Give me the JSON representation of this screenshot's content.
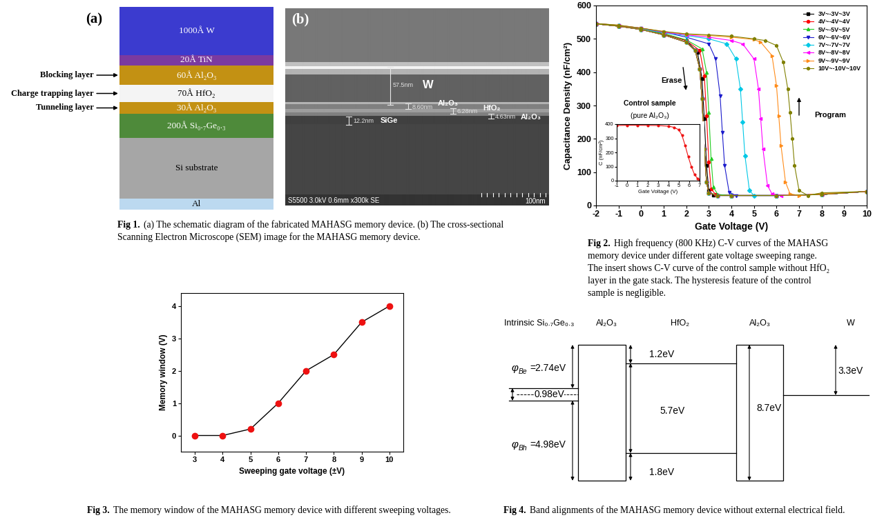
{
  "chart_data": [
    {
      "type": "line",
      "x_label": "Gate Voltage (V)",
      "y_label": "Capacitance Density (nF/cm²)",
      "xlim": [
        -2,
        10
      ],
      "xticks": [
        -2,
        -1,
        0,
        1,
        2,
        3,
        4,
        5,
        6,
        7,
        8,
        9,
        10
      ],
      "ylim": [
        0,
        600
      ],
      "yticks": [
        0,
        100,
        200,
        300,
        400,
        500,
        600
      ],
      "grid": false,
      "legend": "upper right",
      "annotations": [
        "Erase",
        "Program"
      ],
      "series": [
        {
          "name": "3V~-3V~3V",
          "color": "#000000",
          "marker": "square",
          "line_style": "solid",
          "x": [
            -2,
            -1,
            0,
            1,
            2,
            2.4,
            2.6,
            2.7,
            2.8,
            2.9,
            3.0,
            3.4,
            4,
            6,
            8,
            10,
            8,
            6,
            4,
            3.2,
            3.0,
            2.9,
            2.8,
            2.7,
            2.5,
            2,
            1,
            0,
            -1,
            -2
          ],
          "values": [
            545,
            538,
            528,
            512,
            490,
            465,
            410,
            320,
            170,
            70,
            38,
            30,
            30,
            30,
            33,
            42,
            33,
            30,
            30,
            32,
            45,
            120,
            260,
            380,
            460,
            495,
            515,
            530,
            538,
            545
          ]
        },
        {
          "name": "4V~-4V~4V",
          "color": "#ff0000",
          "marker": "circle",
          "line_style": "solid",
          "x": [
            -2,
            -1,
            0,
            1,
            2,
            2.4,
            2.6,
            2.7,
            2.8,
            2.9,
            3.0,
            3.4,
            4,
            6,
            8,
            10,
            8,
            6,
            4,
            3.3,
            3.1,
            3.0,
            2.9,
            2.8,
            2.6,
            2,
            1,
            0,
            -1,
            -2
          ],
          "values": [
            545,
            538,
            528,
            512,
            490,
            465,
            410,
            320,
            170,
            70,
            38,
            30,
            30,
            30,
            33,
            42,
            33,
            30,
            30,
            33,
            50,
            130,
            270,
            390,
            465,
            495,
            515,
            530,
            538,
            545
          ]
        },
        {
          "name": "5V~-5V~5V",
          "color": "#22cc22",
          "marker": "triangle_up",
          "line_style": "solid",
          "x": [
            -2,
            -1,
            0,
            1,
            2,
            2.4,
            2.6,
            2.7,
            2.8,
            2.9,
            3.0,
            3.4,
            4,
            6,
            8,
            10,
            8,
            6,
            4,
            3.4,
            3.2,
            3.1,
            3.0,
            2.9,
            2.7,
            2,
            1,
            0,
            -1,
            -2
          ],
          "values": [
            545,
            538,
            528,
            512,
            490,
            465,
            410,
            320,
            170,
            70,
            38,
            30,
            30,
            30,
            33,
            42,
            33,
            30,
            30,
            33,
            55,
            140,
            280,
            400,
            470,
            497,
            516,
            530,
            539,
            545
          ]
        },
        {
          "name": "6V~-6V~6V",
          "color": "#1a1acc",
          "marker": "triangle_down",
          "line_style": "solid",
          "x": [
            -2,
            -1,
            0,
            1,
            2,
            2.4,
            2.6,
            2.7,
            2.8,
            2.9,
            3.0,
            3.4,
            4,
            6,
            8,
            10,
            8,
            6,
            4.2,
            3.9,
            3.7,
            3.6,
            3.5,
            3.3,
            3.0,
            2,
            1,
            0,
            -1,
            -2
          ],
          "values": [
            545,
            538,
            528,
            512,
            490,
            465,
            410,
            320,
            170,
            70,
            38,
            30,
            30,
            30,
            33,
            42,
            33,
            30,
            30,
            40,
            120,
            220,
            330,
            440,
            485,
            505,
            520,
            532,
            540,
            546
          ]
        },
        {
          "name": "7V~-7V~7V",
          "color": "#00c8e6",
          "marker": "diamond",
          "line_style": "solid",
          "x": [
            -2,
            -1,
            0,
            1,
            2,
            2.4,
            2.6,
            2.7,
            2.8,
            2.9,
            3.0,
            3.4,
            4,
            6,
            8,
            10,
            8,
            6,
            5,
            4.8,
            4.6,
            4.5,
            4.4,
            4.2,
            3.8,
            3,
            2,
            1,
            0,
            -1,
            -2
          ],
          "values": [
            545,
            538,
            528,
            512,
            490,
            465,
            410,
            320,
            170,
            70,
            38,
            30,
            30,
            30,
            33,
            42,
            34,
            30,
            30,
            45,
            150,
            250,
            350,
            440,
            485,
            500,
            510,
            518,
            530,
            540,
            546
          ]
        },
        {
          "name": "8V~-8V~8V",
          "color": "#ff00ff",
          "marker": "triangle_left",
          "line_style": "solid",
          "x": [
            -2,
            -1,
            0,
            1,
            2,
            2.4,
            2.6,
            2.7,
            2.8,
            2.9,
            3.0,
            3.4,
            4,
            6,
            8,
            10,
            8,
            6.2,
            5.8,
            5.6,
            5.4,
            5.3,
            5.2,
            5.0,
            4.5,
            4,
            3,
            2,
            1,
            0,
            -1,
            -2
          ],
          "values": [
            545,
            538,
            528,
            512,
            490,
            465,
            410,
            320,
            170,
            70,
            38,
            30,
            30,
            30,
            33,
            42,
            34,
            30,
            35,
            60,
            170,
            260,
            350,
            440,
            485,
            495,
            505,
            512,
            520,
            532,
            540,
            546
          ]
        },
        {
          "name": "9V~-9V~9V",
          "color": "#ff8c1a",
          "marker": "triangle_right",
          "line_style": "solid",
          "x": [
            -2,
            -1,
            0,
            1,
            2,
            2.4,
            2.6,
            2.7,
            2.8,
            2.9,
            3.0,
            3.4,
            4,
            6,
            8,
            10,
            8,
            7,
            6.6,
            6.4,
            6.2,
            6.1,
            6.0,
            5.8,
            5.3,
            5,
            4,
            3,
            2,
            1,
            0,
            -1,
            -2
          ],
          "values": [
            545,
            538,
            528,
            512,
            490,
            465,
            410,
            320,
            170,
            70,
            38,
            30,
            30,
            30,
            33,
            42,
            36,
            30,
            35,
            70,
            180,
            270,
            360,
            450,
            490,
            498,
            505,
            510,
            514,
            522,
            532,
            541,
            546
          ]
        },
        {
          "name": "10V~-10V~10V",
          "color": "#808000",
          "marker": "hexagon",
          "line_style": "solid",
          "x": [
            -2,
            -1,
            0,
            1,
            2,
            2.4,
            2.6,
            2.7,
            2.8,
            2.9,
            3.0,
            3.4,
            4,
            6,
            8,
            10,
            8,
            7.4,
            7.0,
            6.8,
            6.7,
            6.6,
            6.5,
            6.3,
            6.0,
            5.5,
            5,
            4,
            3,
            2,
            1,
            0,
            -1,
            -2
          ],
          "values": [
            545,
            538,
            528,
            512,
            490,
            465,
            410,
            320,
            170,
            70,
            38,
            30,
            30,
            30,
            33,
            42,
            38,
            30,
            45,
            120,
            200,
            280,
            350,
            430,
            480,
            495,
            500,
            508,
            512,
            515,
            522,
            532,
            541,
            546
          ]
        }
      ]
    },
    {
      "type": "line",
      "title": "Control sample",
      "subtitle": "(pure Al₂O₃)",
      "x_label": "Gate Voltage (V)",
      "y_label": "C (nF/cm²)",
      "xlim": [
        -1,
        7
      ],
      "xticks": [
        -1,
        0,
        1,
        2,
        3,
        4,
        5,
        6,
        7
      ],
      "ylim": [
        0,
        400
      ],
      "yticks": [
        0,
        100,
        200,
        300,
        400
      ],
      "grid": false,
      "color": "#ee1111",
      "marker": "circle",
      "line_style": "solid",
      "x": [
        -1,
        0,
        1,
        2,
        3,
        4,
        4.5,
        5,
        5.3,
        5.6,
        5.9,
        6.2,
        6.5,
        6.8,
        7
      ],
      "values": [
        390,
        392,
        392,
        391,
        390,
        385,
        378,
        360,
        320,
        250,
        170,
        100,
        45,
        15,
        5
      ]
    },
    {
      "type": "line",
      "x_label": "Sweeping gate voltage (±V)",
      "y_label": "Memory window (V)",
      "xlim": [
        2.5,
        10.5
      ],
      "xticks": [
        3,
        4,
        5,
        6,
        7,
        8,
        9,
        10
      ],
      "ylim": [
        -0.5,
        4.4
      ],
      "yticks": [
        0,
        1,
        2,
        3,
        4
      ],
      "grid": false,
      "color": "#ee1111",
      "marker": "circle",
      "line_style": "solid",
      "x": [
        3,
        4,
        5,
        6,
        7,
        8,
        9,
        10
      ],
      "values": [
        0,
        0,
        0.2,
        1,
        2,
        2.5,
        3.5,
        4
      ]
    }
  ],
  "fig1": {
    "schematic": {
      "panel_label": "(a)",
      "layers": [
        {
          "label": "1000Å W",
          "color": "#3b3bcf"
        },
        {
          "label": "20Å TiN",
          "color": "#7b3aa0"
        },
        {
          "label": "60Å Al₂O₃",
          "color": "#c39113",
          "side_label": "Blocking layer"
        },
        {
          "label": "70Å HfO₂",
          "color": "#f4f4f4",
          "side_label": "Charge trapping layer"
        },
        {
          "label": "30Å Al₂O₃",
          "color": "#c39113",
          "side_label": "Tunneling layer"
        },
        {
          "label": "200Å Si₀.₇Ge₀.₃",
          "color": "#4e8a3a"
        },
        {
          "label": "Si substrate",
          "color": "#a6a6a6"
        },
        {
          "label": "Al",
          "color": "#bcd9f0"
        }
      ]
    },
    "sem": {
      "panel_label": "(b)",
      "measurements": [
        {
          "thickness": "57.5nm",
          "layer": "W"
        },
        {
          "thickness": "8.60nm",
          "layer": "Al₂O₃"
        },
        {
          "thickness": "6.28nm",
          "layer": "HfO₂"
        },
        {
          "thickness": "4.63nm",
          "layer": "Al₂O₃"
        },
        {
          "thickness": "12.2nm",
          "layer": "SiGe"
        }
      ],
      "info": "S5500 3.0kV 0.6mm x300k SE",
      "scale_bar": "100nm"
    }
  },
  "fig4": {
    "headers": [
      "Intrinsic Si₀.₇Ge₀.₃",
      "Al₂O₃",
      "HfO₂",
      "Al₂O₃",
      "W"
    ],
    "barriers": [
      {
        "symbol": "φ",
        "subscript": "Be",
        "text": "=2.74eV"
      },
      {
        "symbol": "φ",
        "subscript": "Bh",
        "text": "=4.98eV"
      }
    ],
    "band_gap": "0.98eV",
    "offsets": [
      "1.2eV",
      "5.7eV",
      "1.8eV",
      "8.7eV",
      "3.3eV"
    ]
  },
  "captions": [
    {
      "label": "Fig 1.",
      "lines": [
        "(a) The schematic diagram of the fabricated MAHASG memory device. (b) The cross-sectional",
        "Scanning Electron Microscope (SEM) image for the MAHASG memory device."
      ]
    },
    {
      "label": "Fig 2.",
      "lines": [
        "High frequency (800 KHz) C-V curves of the MAHASG",
        "memory device under different gate voltage sweeping range.",
        "The insert shows C-V curve of the control sample without HfO₂",
        "layer in the gate stack. The hysteresis feature of the control",
        "sample is negligible."
      ]
    },
    {
      "label": "Fig 3.",
      "lines": [
        "The memory window of the MAHASG memory device with different sweeping voltages."
      ]
    },
    {
      "label": "Fig 4.",
      "lines": [
        "Band alignments of the MAHASG memory device without external electrical field."
      ]
    }
  ]
}
